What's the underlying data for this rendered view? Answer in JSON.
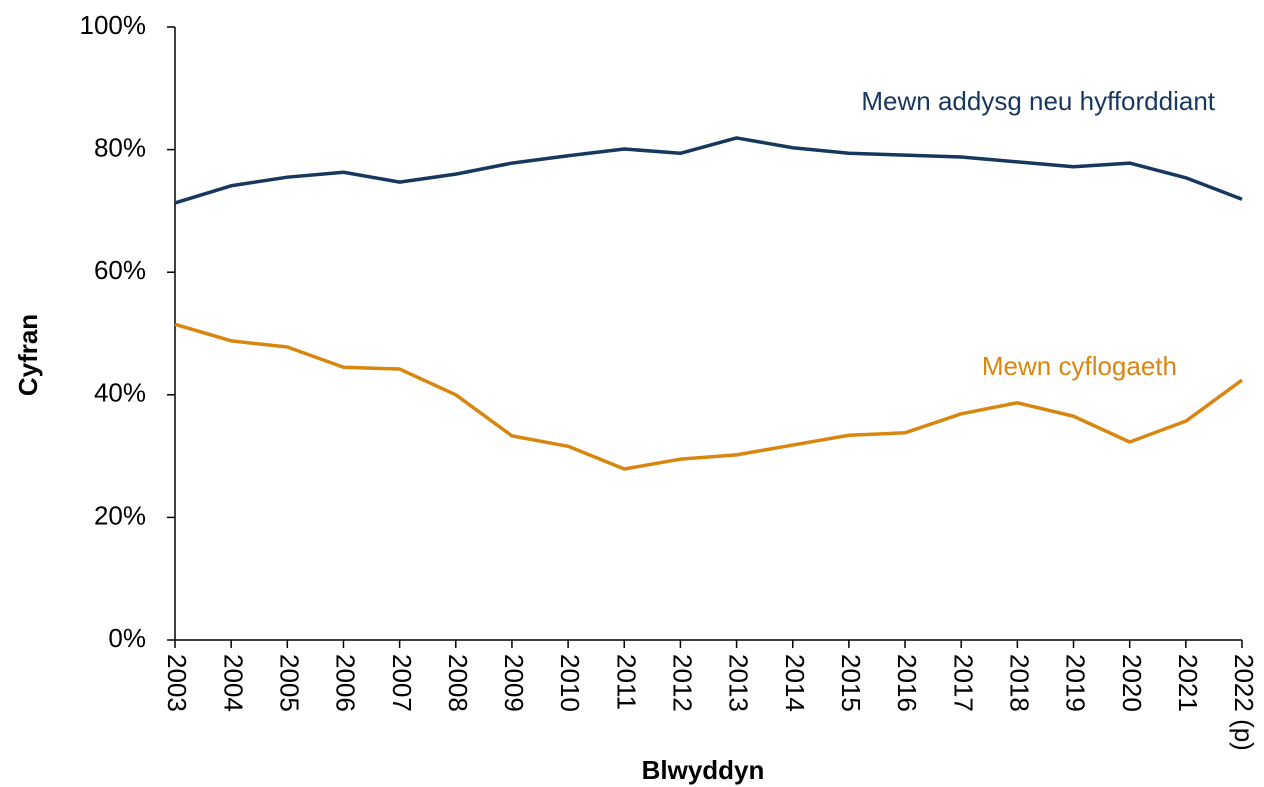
{
  "chart_data": {
    "type": "line",
    "x_label": "Blwyddyn",
    "y_label": "Cyfran",
    "categories": [
      "2003",
      "2004",
      "2005",
      "2006",
      "2007",
      "2008",
      "2009",
      "2010",
      "2011",
      "2012",
      "2013",
      "2014",
      "2015",
      "2016",
      "2017",
      "2018",
      "2019",
      "2020",
      "2021",
      "2022 (p)"
    ],
    "series": [
      {
        "name": "Mewn addysg neu hyfforddiant",
        "color": "#17375e",
        "values": [
          71.3,
          74.1,
          75.5,
          76.3,
          74.7,
          76.0,
          77.8,
          79.0,
          80.1,
          79.4,
          81.9,
          80.3,
          79.4,
          79.1,
          78.8,
          78.0,
          77.2,
          77.8,
          75.4,
          71.9
        ]
      },
      {
        "name": "Mewn cyflogaeth",
        "color": "#d9860f",
        "values": [
          51.5,
          48.8,
          47.8,
          44.5,
          44.2,
          40.0,
          33.3,
          31.6,
          27.9,
          29.5,
          30.2,
          31.8,
          33.4,
          33.8,
          36.9,
          38.7,
          36.5,
          32.3,
          35.7,
          42.4
        ]
      }
    ],
    "ylim": [
      0,
      100
    ],
    "yticks": [
      {
        "value": 0,
        "label": "0%"
      },
      {
        "value": 20,
        "label": "20%"
      },
      {
        "value": 40,
        "label": "40%"
      },
      {
        "value": 60,
        "label": "60%"
      },
      {
        "value": 80,
        "label": "80%"
      },
      {
        "value": 100,
        "label": "100%"
      }
    ],
    "grid": false
  }
}
